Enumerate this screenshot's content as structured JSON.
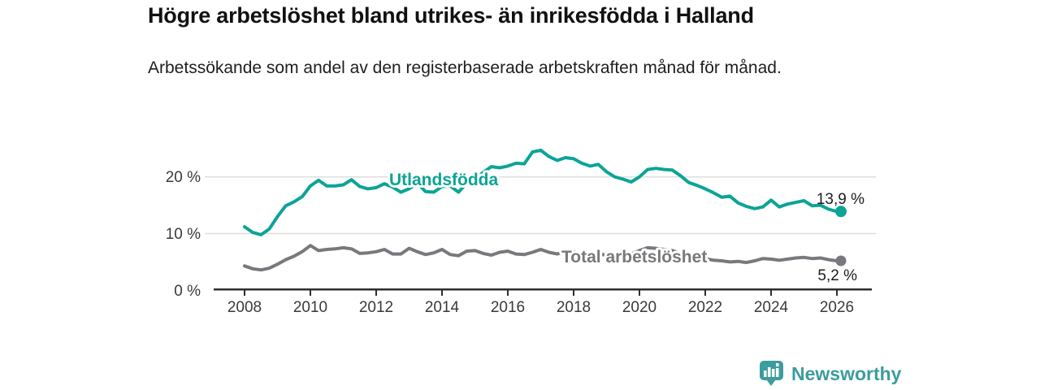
{
  "header": {
    "title": "Högre arbetslöshet bland utrikes- än inrikesfödda i Halland",
    "subtitle": "Arbetssökande som andel av den registerbaserade arbetskraften månad för månad."
  },
  "footer": {
    "brand": "Newsworthy"
  },
  "colors": {
    "foreign_born_line": "#0ca496",
    "total_line": "#78787d",
    "brand_teal": "#3d9c9d",
    "gridline": "#dedede",
    "axis": "#2e2e2e"
  },
  "chart_data": {
    "type": "line",
    "title": "Högre arbetslöshet bland utrikes- än inrikesfödda i Halland",
    "subtitle": "Arbetssökande som andel av den registerbaserade arbetskraften månad för månad.",
    "x_unit": "year",
    "x_start": 2008,
    "x_step_years": 0.25,
    "x_tick_labels": [
      "2008",
      "2010",
      "2012",
      "2014",
      "2016",
      "2018",
      "2020",
      "2022",
      "2024",
      "2026"
    ],
    "x_tick_values": [
      2008,
      2010,
      2012,
      2014,
      2016,
      2018,
      2020,
      2022,
      2024,
      2026
    ],
    "y_tick_labels": [
      "0 %",
      "10 %",
      "20 %"
    ],
    "y_tick_values": [
      0,
      10,
      20
    ],
    "ylim": [
      0,
      26
    ],
    "grid": "horizontal",
    "legend_position": "inline-labels",
    "series": [
      {
        "name": "Utlandsfödda",
        "color": "#0ca496",
        "end_label": "13,9 %",
        "end_value": 13.9,
        "values": [
          11.2,
          10.2,
          9.8,
          10.8,
          13.0,
          14.9,
          15.6,
          16.5,
          18.4,
          19.4,
          18.4,
          18.4,
          18.6,
          19.5,
          18.3,
          17.9,
          18.1,
          18.8,
          18.2,
          17.3,
          17.9,
          18.9,
          17.4,
          17.3,
          18.3,
          18.4,
          17.3,
          18.9,
          19.5,
          20.8,
          21.8,
          21.6,
          21.9,
          22.4,
          22.3,
          24.4,
          24.7,
          23.6,
          22.9,
          23.4,
          23.2,
          22.4,
          21.9,
          22.2,
          20.9,
          20.0,
          19.6,
          19.1,
          20.0,
          21.3,
          21.5,
          21.3,
          21.2,
          20.2,
          19.0,
          18.5,
          17.9,
          17.2,
          16.4,
          16.6,
          15.4,
          14.8,
          14.4,
          14.7,
          15.9,
          14.7,
          15.2,
          15.5,
          15.8,
          14.9,
          15.0,
          14.3,
          13.9
        ]
      },
      {
        "name": "Total arbetslöshet",
        "color": "#78787d",
        "end_label": "5,2 %",
        "end_value": 5.2,
        "values": [
          4.3,
          3.8,
          3.6,
          3.9,
          4.6,
          5.4,
          6.0,
          6.8,
          7.9,
          7.0,
          7.2,
          7.3,
          7.5,
          7.3,
          6.5,
          6.6,
          6.8,
          7.2,
          6.4,
          6.4,
          7.4,
          6.8,
          6.3,
          6.6,
          7.2,
          6.3,
          6.1,
          6.9,
          7.0,
          6.5,
          6.2,
          6.7,
          6.9,
          6.4,
          6.3,
          6.7,
          7.2,
          6.7,
          6.4,
          6.8,
          6.8,
          6.3,
          6.1,
          6.4,
          6.2,
          6.0,
          6.1,
          6.4,
          7.0,
          7.5,
          7.4,
          7.2,
          7.0,
          6.5,
          6.1,
          5.8,
          5.6,
          5.3,
          5.2,
          5.0,
          5.1,
          4.9,
          5.2,
          5.6,
          5.5,
          5.3,
          5.5,
          5.7,
          5.8,
          5.6,
          5.7,
          5.4,
          5.2
        ]
      }
    ]
  }
}
